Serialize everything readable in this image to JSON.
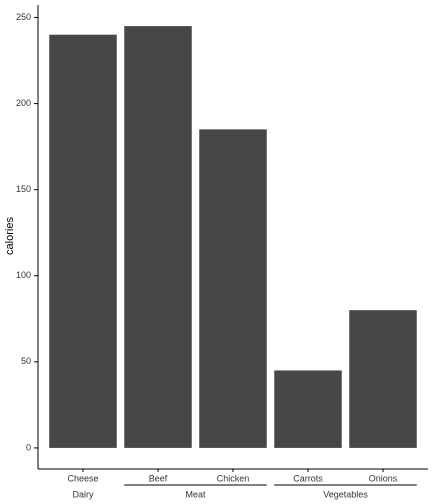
{
  "chart_data": {
    "type": "bar",
    "y_label": "calories",
    "categories": [
      "Cheese",
      "Beef",
      "Chicken",
      "Carrots",
      "Onions"
    ],
    "values": [
      240,
      245,
      185,
      45,
      80
    ],
    "color": "#474747",
    "groups": [
      {
        "label": "Dairy",
        "count": 1
      },
      {
        "label": "Meat",
        "count": 2
      },
      {
        "label": "Vegetables",
        "count": 2
      }
    ],
    "ylim": [
      -12.25,
      257.25
    ],
    "yticks": [
      0,
      50,
      100,
      150,
      200,
      250
    ],
    "grid": false
  }
}
